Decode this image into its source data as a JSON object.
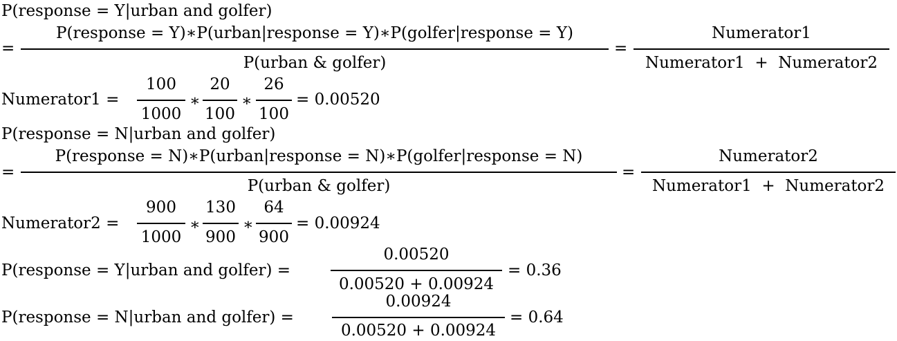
{
  "block1": {
    "heading": "P(response = Y|urban and golfer)",
    "eq_sign": "=",
    "frac1_num": "P(response = Y)∗P(urban|response = Y)∗P(golfer|response = Y)",
    "frac1_den": "P(urban & golfer)",
    "eq_sign2": "=",
    "frac2_num": "Numerator1",
    "frac2_den": "Numerator1  +  Numerator2"
  },
  "num1_calc": {
    "label": "Numerator1 =",
    "f1_num": "100",
    "f1_den": "1000",
    "times1": "∗",
    "f2_num": "20",
    "f2_den": "100",
    "times2": "∗",
    "f3_num": "26",
    "f3_den": "100",
    "result": "= 0.00520"
  },
  "block2": {
    "heading": "P(response = N|urban and golfer)",
    "eq_sign": "=",
    "frac1_num": "P(response = N)∗P(urban|response = N)∗P(golfer|response = N)",
    "frac1_den": "P(urban & golfer)",
    "eq_sign2": "=",
    "frac2_num": "Numerator2",
    "frac2_den": "Numerator1  +  Numerator2"
  },
  "num2_calc": {
    "label": "Numerator2 =",
    "f1_num": "900",
    "f1_den": "1000",
    "times1": "∗",
    "f2_num": "130",
    "f2_den": "900",
    "times2": "∗",
    "f3_num": "64",
    "f3_den": "900",
    "result": "= 0.00924"
  },
  "result_y": {
    "label": "P(response = Y|urban and golfer) =",
    "frac_num": "0.00520",
    "frac_den": "0.00520 + 0.00924",
    "result": "= 0.36"
  },
  "result_n": {
    "label": "P(response = N|urban and golfer) =",
    "frac_num": "0.00924",
    "frac_den": "0.00520 + 0.00924",
    "result": "= 0.64"
  }
}
